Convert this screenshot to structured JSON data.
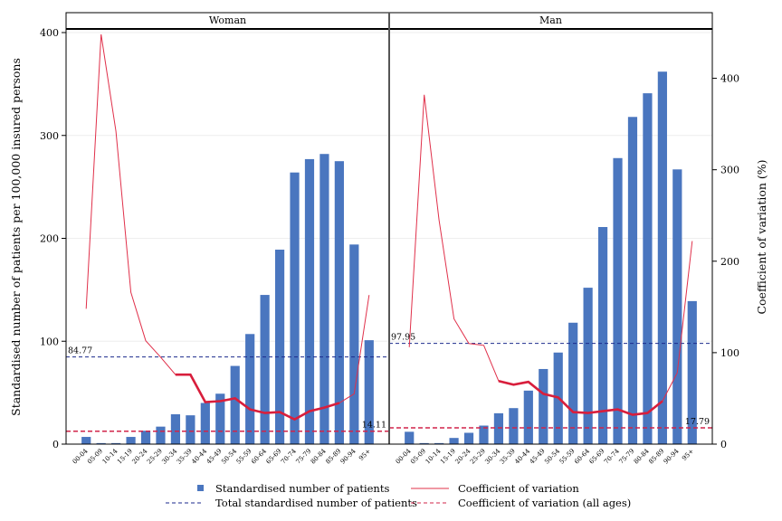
{
  "chart_data": {
    "type": "bar",
    "panels": [
      "Woman",
      "Man"
    ],
    "categories": [
      "00-04",
      "05-09",
      "10-14",
      "15-19",
      "20-24",
      "25-29",
      "30-34",
      "35-39",
      "40-44",
      "45-49",
      "50-54",
      "55-59",
      "60-64",
      "65-69",
      "70-74",
      "75-79",
      "80-84",
      "85-89",
      "90-94",
      "95+"
    ],
    "left_axis": {
      "label": "Standardised number of patients per 100,000 insured persons",
      "range": [
        0,
        400
      ],
      "ticks": [
        0,
        100,
        200,
        300,
        400
      ]
    },
    "right_axis": {
      "label": "Coefficient of variation (%)",
      "range": [
        0,
        450
      ],
      "ticks": [
        0,
        100,
        200,
        300,
        400
      ]
    },
    "series": [
      {
        "name": "Standardised number of patients",
        "kind": "bar",
        "axis": "left",
        "color": "#4a76bf",
        "values": {
          "Woman": [
            7,
            1,
            1,
            7,
            13,
            17,
            29,
            28,
            40,
            49,
            76,
            107,
            145,
            189,
            264,
            277,
            282,
            275,
            194,
            101
          ],
          "Man": [
            12,
            1,
            1,
            6,
            11,
            18,
            30,
            35,
            52,
            73,
            89,
            118,
            152,
            211,
            278,
            318,
            341,
            362,
            267,
            139
          ]
        }
      },
      {
        "name": "Coefficient of variation",
        "kind": "line",
        "axis": "right",
        "color": "#e0304a",
        "values": {
          "Woman": [
            148,
            448,
            342,
            166,
            113,
            95,
            76,
            76,
            46,
            47,
            50,
            38,
            34,
            35,
            27,
            36,
            40,
            45,
            55,
            163
          ],
          "Man": [
            106,
            382,
            245,
            137,
            110,
            108,
            69,
            65,
            68,
            55,
            51,
            35,
            34,
            36,
            38,
            32,
            34,
            47,
            78,
            222
          ]
        }
      },
      {
        "name": "Total standardised number of patients",
        "kind": "hline",
        "axis": "left",
        "color": "#1b2a8c",
        "values": {
          "Woman": 84.77,
          "Man": 97.95
        },
        "labels": {
          "Woman": "84.77",
          "Man": "97.95"
        }
      },
      {
        "name": "Coefficient of variation (all ages)",
        "kind": "hline",
        "axis": "right",
        "color": "#d0244a",
        "values": {
          "Woman": 14.11,
          "Man": 17.79
        },
        "labels": {
          "Woman": "14.11",
          "Man": "17.79"
        }
      }
    ],
    "legend": {
      "placement": "bottom"
    }
  }
}
